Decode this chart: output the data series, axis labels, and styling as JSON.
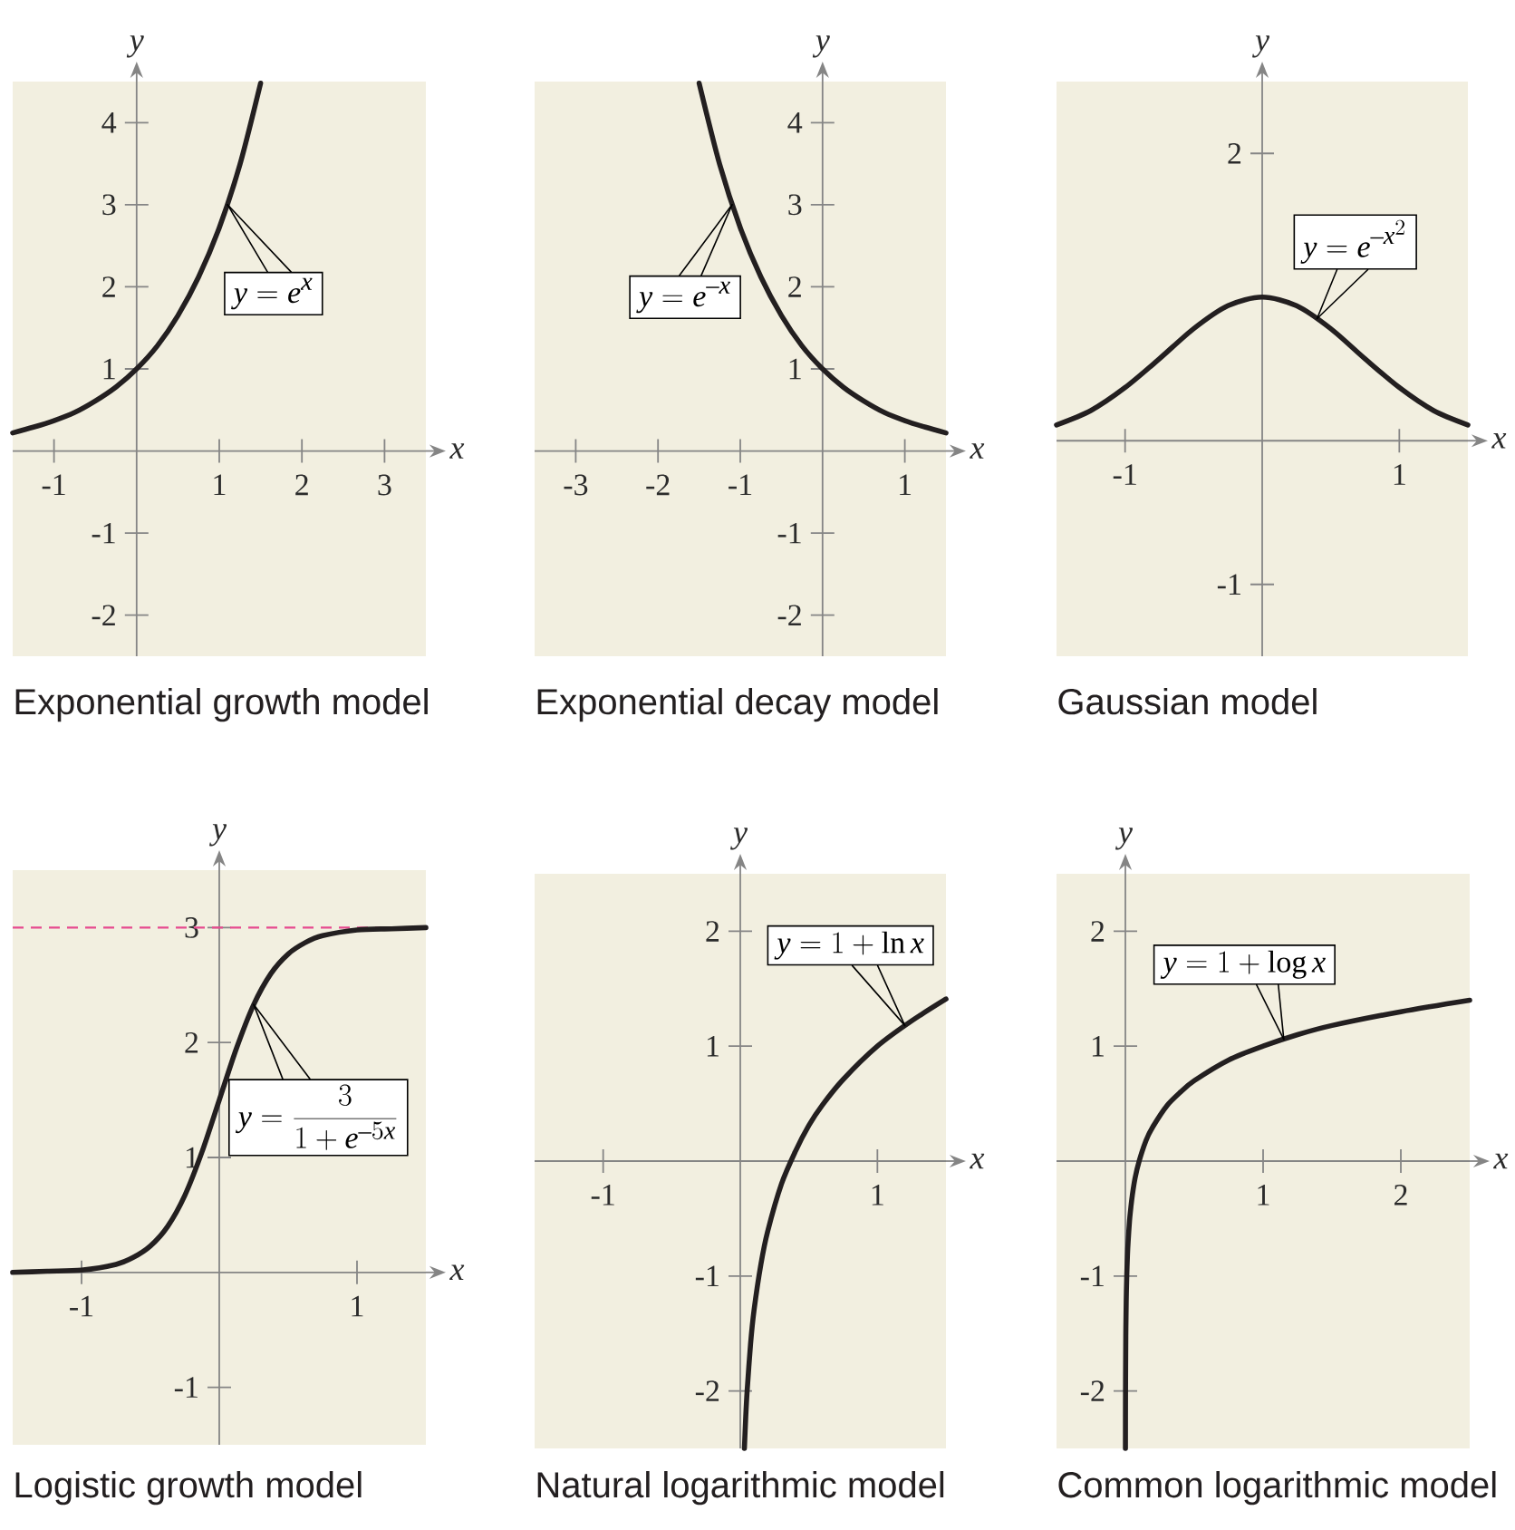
{
  "chart_data": [
    {
      "type": "line",
      "title": "Exponential growth model",
      "xlabel": "x",
      "ylabel": "y",
      "xlim": [
        -1.5,
        3.5
      ],
      "ylim": [
        -2.5,
        4.5
      ],
      "xticks": [
        -1,
        1,
        2,
        3
      ],
      "yticks": [
        -2,
        -1,
        1,
        2,
        3,
        4
      ],
      "x": [
        -1.5,
        -1.25,
        -1,
        -0.75,
        -0.5,
        -0.25,
        0,
        0.25,
        0.5,
        0.75,
        1,
        1.25,
        1.5
      ],
      "values": [
        0.22,
        0.29,
        0.37,
        0.47,
        0.61,
        0.78,
        1.0,
        1.28,
        1.65,
        2.12,
        2.72,
        3.49,
        4.48
      ],
      "color": "#231f20",
      "annotations": [
        {
          "text": "y = e^{x}",
          "x": 1.1,
          "y": 3.0
        }
      ]
    },
    {
      "type": "line",
      "title": "Exponential decay model",
      "xlabel": "x",
      "ylabel": "y",
      "xlim": [
        -3.5,
        1.5
      ],
      "ylim": [
        -2.5,
        4.5
      ],
      "xticks": [
        -3,
        -2,
        -1,
        1
      ],
      "yticks": [
        -2,
        -1,
        1,
        2,
        3,
        4
      ],
      "x": [
        -1.5,
        -1.25,
        -1,
        -0.75,
        -0.5,
        -0.25,
        0,
        0.25,
        0.5,
        0.75,
        1,
        1.25,
        1.5
      ],
      "values": [
        4.48,
        3.49,
        2.72,
        2.12,
        1.65,
        1.28,
        1.0,
        0.78,
        0.61,
        0.47,
        0.37,
        0.29,
        0.22
      ],
      "color": "#231f20",
      "annotations": [
        {
          "text": "y = e^{-x}",
          "x": -1.1,
          "y": 3.0
        }
      ]
    },
    {
      "type": "line",
      "title": "Gaussian model",
      "xlabel": "x",
      "ylabel": "y",
      "xlim": [
        -1.5,
        1.5
      ],
      "ylim": [
        -1.5,
        2.5
      ],
      "xticks": [
        -1,
        1
      ],
      "yticks": [
        -1,
        2
      ],
      "x": [
        -1.5,
        -1.25,
        -1,
        -0.75,
        -0.5,
        -0.25,
        0,
        0.25,
        0.5,
        0.75,
        1,
        1.25,
        1.5
      ],
      "values": [
        0.11,
        0.21,
        0.37,
        0.57,
        0.78,
        0.94,
        1.0,
        0.94,
        0.78,
        0.57,
        0.37,
        0.21,
        0.11
      ],
      "color": "#231f20",
      "annotations": [
        {
          "text": "y = e^{-x^{2}}",
          "x": 0.4,
          "y": 0.85
        }
      ]
    },
    {
      "type": "line",
      "title": "Logistic growth model",
      "xlabel": "x",
      "ylabel": "y",
      "xlim": [
        -1.5,
        1.5
      ],
      "ylim": [
        -1.5,
        3.5
      ],
      "xticks": [
        -1,
        1
      ],
      "yticks": [
        -1,
        1,
        2,
        3
      ],
      "x": [
        -1.5,
        -1.25,
        -1,
        -0.75,
        -0.625,
        -0.5,
        -0.375,
        -0.25,
        -0.125,
        0,
        0.125,
        0.25,
        0.375,
        0.5,
        0.625,
        0.75,
        1,
        1.25,
        1.5
      ],
      "values": [
        0.0,
        0.01,
        0.02,
        0.07,
        0.13,
        0.23,
        0.4,
        0.67,
        1.05,
        1.5,
        1.95,
        2.33,
        2.6,
        2.77,
        2.87,
        2.93,
        2.98,
        2.99,
        3.0
      ],
      "color": "#231f20",
      "ref_lines": [
        {
          "axis": "y",
          "value": 3,
          "color": "#e64a8e",
          "line_style": "dashed"
        }
      ],
      "annotations": [
        {
          "text": "y = \\frac{3}{1 + e^{-5x}}",
          "x": 0.25,
          "y": 2.33
        }
      ]
    },
    {
      "type": "line",
      "title": "Natural logarithmic model",
      "xlabel": "x",
      "ylabel": "y",
      "xlim": [
        -1.5,
        1.5
      ],
      "ylim": [
        -2.5,
        2.5
      ],
      "xticks": [
        -1,
        1
      ],
      "yticks": [
        -2,
        -1,
        1,
        2
      ],
      "x": [
        0.03,
        0.04,
        0.05,
        0.075,
        0.1,
        0.15,
        0.2,
        0.3,
        0.4,
        0.5,
        0.6,
        0.75,
        1,
        1.25,
        1.5
      ],
      "values": [
        -2.5,
        -2.22,
        -2.0,
        -1.59,
        -1.3,
        -0.9,
        -0.61,
        -0.2,
        0.08,
        0.31,
        0.49,
        0.71,
        1.0,
        1.22,
        1.41
      ],
      "color": "#231f20",
      "annotations": [
        {
          "text": "y = 1 + \\ln x",
          "x": 1.2,
          "y": 1.18
        }
      ]
    },
    {
      "type": "line",
      "title": "Common logarithmic model",
      "xlabel": "x",
      "ylabel": "y",
      "xlim": [
        -0.5,
        2.5
      ],
      "ylim": [
        -2.5,
        2.5
      ],
      "xticks": [
        1,
        2
      ],
      "yticks": [
        -2,
        -1,
        1,
        2
      ],
      "x": [
        0.0003,
        0.001,
        0.003,
        0.006,
        0.01,
        0.015,
        0.02,
        0.03,
        0.04,
        0.05,
        0.07,
        0.1,
        0.15,
        0.2,
        0.3,
        0.4,
        0.5,
        0.75,
        1,
        1.25,
        1.5,
        2,
        2.5
      ],
      "values": [
        -2.5,
        -2.0,
        -1.52,
        -1.22,
        -1.0,
        -0.82,
        -0.7,
        -0.52,
        -0.4,
        -0.3,
        -0.15,
        0.0,
        0.18,
        0.3,
        0.48,
        0.6,
        0.7,
        0.88,
        1.0,
        1.1,
        1.18,
        1.3,
        1.4
      ],
      "color": "#231f20",
      "annotations": [
        {
          "text": "y = 1 + \\log x",
          "x": 1.15,
          "y": 1.06
        }
      ]
    }
  ]
}
